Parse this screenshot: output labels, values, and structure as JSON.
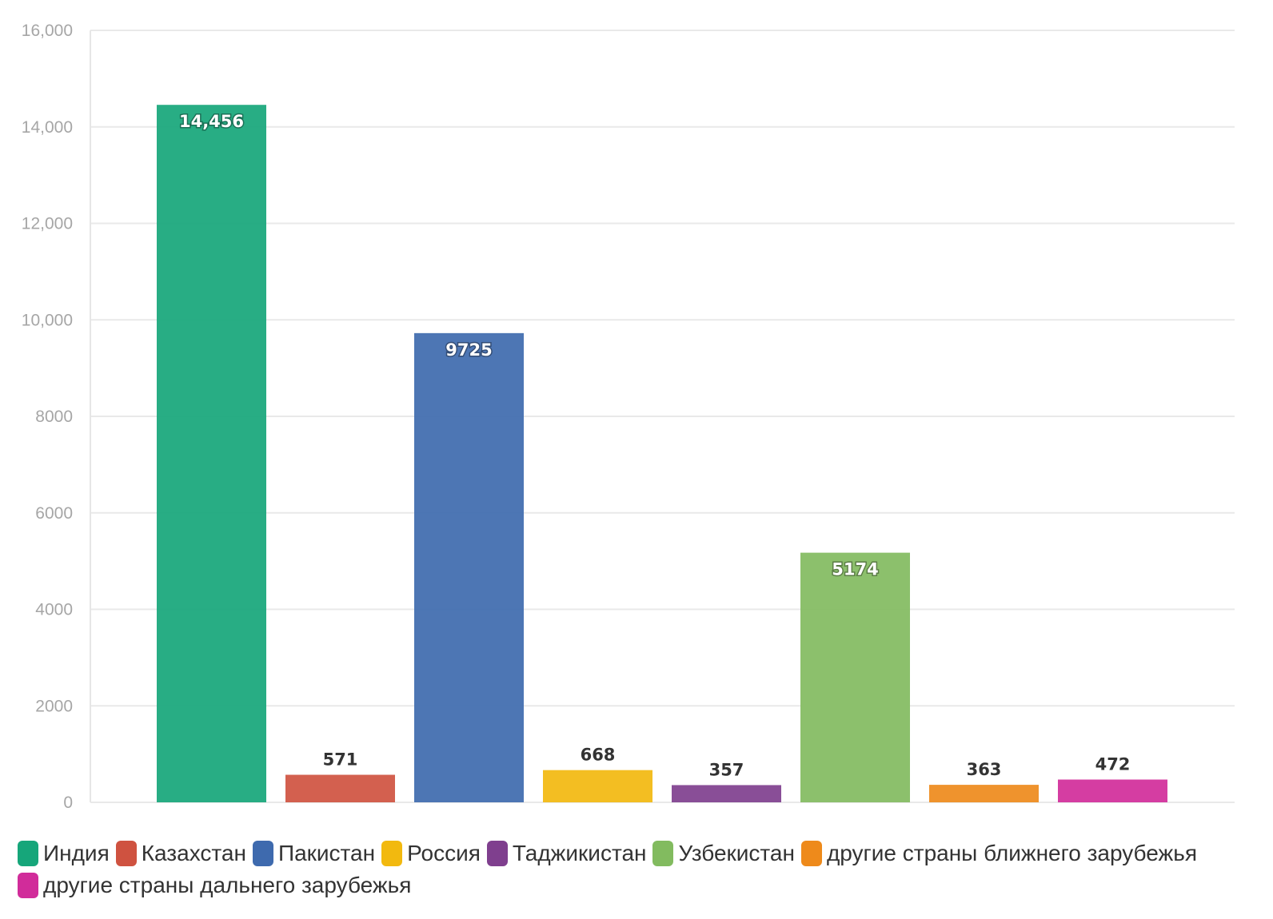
{
  "chart_data": {
    "type": "bar",
    "title": "",
    "xlabel": "",
    "ylabel": "",
    "ylim": [
      0,
      16000
    ],
    "yticks": [
      0,
      2000,
      4000,
      6000,
      8000,
      10000,
      12000,
      14000,
      16000
    ],
    "ytick_labels": [
      "0",
      "2000",
      "4000",
      "6000",
      "8000",
      "10,000",
      "12,000",
      "14,000",
      "16,000"
    ],
    "grid": true,
    "legend_position": "bottom",
    "series": [
      {
        "name": "Индия",
        "value": 14456,
        "label": "14,456",
        "color": "#16a67a"
      },
      {
        "name": "Казахстан",
        "value": 571,
        "label": "571",
        "color": "#cf5240"
      },
      {
        "name": "Пакистан",
        "value": 9725,
        "label": "9725",
        "color": "#3e6aae"
      },
      {
        "name": "Россия",
        "value": 668,
        "label": "668",
        "color": "#f2b90f"
      },
      {
        "name": "Таджикистан",
        "value": 357,
        "label": "357",
        "color": "#7f3f8e"
      },
      {
        "name": "Узбекистан",
        "value": 5174,
        "label": "5174",
        "color": "#82bb5f"
      },
      {
        "name": "другие страны ближнего зарубежья",
        "value": 363,
        "label": "363",
        "color": "#ee8a1b"
      },
      {
        "name": "другие страны дальнего зарубежья",
        "value": 472,
        "label": "472",
        "color": "#d12c9a"
      }
    ]
  }
}
